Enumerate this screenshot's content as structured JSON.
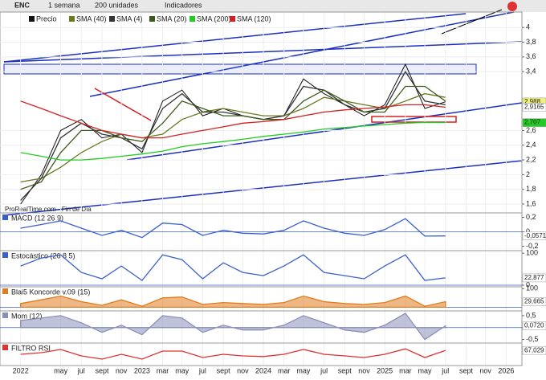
{
  "toolbar": {
    "symbol": "ENC",
    "period": "1 semana",
    "units": "200 unidades",
    "indicators": "Indicadores"
  },
  "footer": "ProRealTime.com - Fin de Día",
  "chart_data": [
    {
      "type": "line",
      "x": [
        2022.0,
        2022.17,
        2022.33,
        2022.5,
        2022.67,
        2022.83,
        2023.0,
        2023.17,
        2023.33,
        2023.5,
        2023.67,
        2023.83,
        2024.0,
        2024.17,
        2024.33,
        2024.5,
        2024.67,
        2024.83,
        2025.0,
        2025.17,
        2025.33,
        2025.5
      ],
      "xlim": [
        2021.83,
        2026.13
      ],
      "xticks": [
        {
          "value": 2022,
          "label": "2022"
        },
        {
          "value": 2022.33,
          "label": "may"
        },
        {
          "value": 2022.5,
          "label": "jul"
        },
        {
          "value": 2022.67,
          "label": "sept"
        },
        {
          "value": 2022.83,
          "label": "nov"
        },
        {
          "value": 2023,
          "label": "2023"
        },
        {
          "value": 2023.17,
          "label": "mar"
        },
        {
          "value": 2023.33,
          "label": "may"
        },
        {
          "value": 2023.5,
          "label": "jul"
        },
        {
          "value": 2023.67,
          "label": "sept"
        },
        {
          "value": 2023.83,
          "label": "nov"
        },
        {
          "value": 2024,
          "label": "2024"
        },
        {
          "value": 2024.17,
          "label": "mar"
        },
        {
          "value": 2024.33,
          "label": "may"
        },
        {
          "value": 2024.5,
          "label": "jul"
        },
        {
          "value": 2024.67,
          "label": "sept"
        },
        {
          "value": 2024.83,
          "label": "nov"
        },
        {
          "value": 2025,
          "label": "2025"
        },
        {
          "value": 2025.17,
          "label": "mar"
        },
        {
          "value": 2025.33,
          "label": "may"
        },
        {
          "value": 2025.5,
          "label": "jul"
        },
        {
          "value": 2025.67,
          "label": "sept"
        },
        {
          "value": 2025.83,
          "label": "nov"
        },
        {
          "value": 2026,
          "label": "2026"
        }
      ],
      "ylim": [
        1.48,
        4.21
      ],
      "yticks": [
        4,
        {
          "value": 3.8,
          "label": "3,8"
        },
        {
          "value": 3.6,
          "label": "3,6"
        },
        {
          "value": 3.4,
          "label": "3,4"
        },
        {
          "value": 2.6,
          "label": "2,6"
        },
        {
          "value": 2.4,
          "label": "2,4"
        },
        {
          "value": 2.2,
          "label": "2,2"
        },
        2,
        {
          "value": 1.8,
          "label": "1,8"
        },
        {
          "value": 1.6,
          "label": "1,6"
        }
      ],
      "grid": true,
      "series": [
        {
          "name": "Precio",
          "color": "#111111",
          "values": [
            1.6,
            2.0,
            2.6,
            2.75,
            2.5,
            2.55,
            2.3,
            3.0,
            3.15,
            2.8,
            2.9,
            2.8,
            2.75,
            2.8,
            3.3,
            3.1,
            2.95,
            2.8,
            2.95,
            3.5,
            2.9,
            2.99
          ]
        },
        {
          "name": "SMA (40)",
          "color": "#6b7a1f",
          "values": [
            1.9,
            1.95,
            2.1,
            2.3,
            2.45,
            2.55,
            2.5,
            2.55,
            2.75,
            2.85,
            2.9,
            2.85,
            2.8,
            2.8,
            2.9,
            3.05,
            3.0,
            2.95,
            2.9,
            3.0,
            3.1,
            3.05
          ]
        },
        {
          "name": "SMA (4)",
          "color": "#333333",
          "values": [
            1.65,
            1.95,
            2.5,
            2.7,
            2.55,
            2.5,
            2.35,
            2.9,
            3.1,
            2.85,
            2.85,
            2.8,
            2.75,
            2.8,
            3.2,
            3.15,
            2.95,
            2.85,
            2.9,
            3.4,
            3.0,
            2.95
          ]
        },
        {
          "name": "SMA (20)",
          "color": "#3d5a1e",
          "values": [
            1.8,
            1.9,
            2.3,
            2.6,
            2.6,
            2.5,
            2.45,
            2.7,
            3.0,
            2.9,
            2.8,
            2.8,
            2.75,
            2.75,
            3.0,
            3.15,
            3.0,
            2.85,
            2.85,
            3.2,
            3.2,
            3.0
          ]
        },
        {
          "name": "SMA (200)",
          "color": "#22cc22",
          "values": [
            2.3,
            2.25,
            2.2,
            2.2,
            2.22,
            2.25,
            2.28,
            2.32,
            2.38,
            2.42,
            2.45,
            2.48,
            2.52,
            2.55,
            2.58,
            2.62,
            2.64,
            2.66,
            2.68,
            2.7,
            2.71,
            2.707
          ]
        },
        {
          "name": "SMA (120)",
          "color": "#d42020",
          "values": [
            3.0,
            2.9,
            2.8,
            2.7,
            2.6,
            2.55,
            2.5,
            2.5,
            2.55,
            2.6,
            2.65,
            2.7,
            2.72,
            2.75,
            2.8,
            2.85,
            2.88,
            2.9,
            2.92,
            2.95,
            2.95,
            2.9165
          ]
        }
      ],
      "markers": [
        {
          "value": 2.988,
          "label": "2,988",
          "color": "#f2f27a"
        },
        {
          "value": 2.9165,
          "label": "2,9165",
          "color": "#ffffff"
        },
        {
          "value": 2.707,
          "label": "2,707",
          "color": "#22cc22"
        }
      ]
    },
    {
      "type": "line",
      "title": "MACD (12 26 9)",
      "ylim": [
        -0.26,
        0.26
      ],
      "yticks": [
        {
          "value": 0.2,
          "label": "0,2"
        },
        0,
        {
          "value": -0.2,
          "label": "-0,2"
        }
      ],
      "series": [
        {
          "color": "#3a5fcd",
          "values": [
            0.05,
            0.1,
            0.15,
            0.05,
            -0.05,
            0.02,
            -0.08,
            0.12,
            0.1,
            -0.05,
            0.02,
            -0.02,
            -0.03,
            0.02,
            0.15,
            0.05,
            -0.02,
            -0.05,
            0.03,
            0.18,
            -0.06,
            -0.057
          ]
        }
      ],
      "markers": [
        {
          "value": -0.057,
          "label": "-0,0571",
          "color": "#ffffff"
        }
      ]
    },
    {
      "type": "line",
      "title": "Estocástico (26 8 5)",
      "ylim": [
        -5,
        108
      ],
      "yticks": [
        100,
        0
      ],
      "series": [
        {
          "color": "#3a5fcd",
          "values": [
            60,
            85,
            95,
            40,
            20,
            60,
            15,
            95,
            80,
            20,
            70,
            40,
            30,
            60,
            95,
            40,
            30,
            20,
            60,
            95,
            15,
            22.877
          ]
        }
      ],
      "markers": [
        {
          "value": 22.877,
          "label": "22,877",
          "color": "#ffffff"
        }
      ]
    },
    {
      "type": "area",
      "title": "Blai5 Koncorde v.09 (15)",
      "ylim": [
        -20,
        110
      ],
      "yticks": [
        100
      ],
      "series": [
        {
          "color": "#e07b1f",
          "values": [
            20,
            40,
            60,
            30,
            10,
            40,
            5,
            50,
            55,
            15,
            25,
            20,
            15,
            25,
            60,
            30,
            20,
            15,
            25,
            60,
            5,
            29.665
          ]
        }
      ],
      "markers": [
        {
          "value": 29.665,
          "label": "29,665",
          "color": "#ffffff"
        }
      ]
    },
    {
      "type": "area",
      "title": "Mom (12)",
      "ylim": [
        -0.65,
        0.7
      ],
      "yticks": [
        {
          "value": 0.5,
          "label": "0,5"
        },
        0,
        {
          "value": -0.5,
          "label": "-0,5"
        }
      ],
      "series": [
        {
          "color": "#8a8fb8",
          "values": [
            0.3,
            0.4,
            0.5,
            0.2,
            -0.2,
            0.1,
            -0.3,
            0.5,
            0.4,
            -0.2,
            0.1,
            -0.1,
            -0.1,
            0.1,
            0.5,
            0.2,
            -0.1,
            -0.2,
            0.1,
            0.6,
            -0.5,
            0.072
          ]
        }
      ],
      "markers": [
        {
          "value": 0.072,
          "label": "0,0720",
          "color": "#ffffff"
        }
      ]
    },
    {
      "type": "line",
      "title": "FILTRO RSI",
      "ylim": [
        20,
        90
      ],
      "yticks": [],
      "series": [
        {
          "color": "#e03030",
          "values": [
            55,
            60,
            70,
            50,
            40,
            55,
            40,
            65,
            65,
            45,
            55,
            50,
            48,
            55,
            70,
            55,
            50,
            45,
            55,
            72,
            45,
            67.029
          ]
        }
      ],
      "markers": [
        {
          "value": 67.029,
          "label": "67,029",
          "color": "#ffffff"
        }
      ]
    }
  ]
}
